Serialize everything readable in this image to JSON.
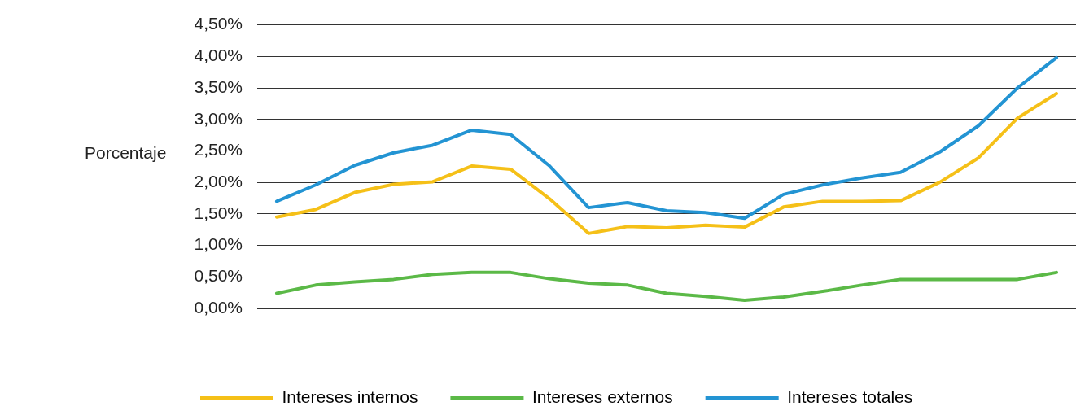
{
  "chart_data": {
    "type": "line",
    "ylabel": "Porcentaje",
    "categories": [
      null,
      null,
      null,
      null,
      null,
      null,
      null,
      null,
      null,
      null,
      null,
      null,
      null,
      null,
      null,
      null,
      null,
      null,
      null,
      null,
      null
    ],
    "series": [
      {
        "name": "Intereses internos",
        "color": "#f5c018",
        "values": [
          1.45,
          1.57,
          1.84,
          1.97,
          2.01,
          2.26,
          2.21,
          1.74,
          1.19,
          1.3,
          1.28,
          1.32,
          1.29,
          1.61,
          1.7,
          1.7,
          1.71,
          2.0,
          2.39,
          3.02,
          3.41
        ]
      },
      {
        "name": "Intereses externos",
        "color": "#5bb947",
        "values": [
          0.24,
          0.37,
          0.42,
          0.46,
          0.54,
          0.57,
          0.57,
          0.47,
          0.4,
          0.37,
          0.24,
          0.19,
          0.13,
          0.18,
          0.27,
          0.37,
          0.46,
          0.46,
          0.46,
          0.46,
          0.57
        ]
      },
      {
        "name": "Intereses totales",
        "color": "#2394d3",
        "values": [
          1.7,
          1.96,
          2.27,
          2.47,
          2.59,
          2.83,
          2.76,
          2.26,
          1.6,
          1.68,
          1.55,
          1.52,
          1.43,
          1.81,
          1.96,
          2.07,
          2.16,
          2.48,
          2.9,
          3.5,
          3.98
        ]
      }
    ],
    "ylim": [
      0,
      4.5
    ],
    "yticks": [
      {
        "value": 0,
        "label": "0,00%"
      },
      {
        "value": 0.5,
        "label": "0,50%"
      },
      {
        "value": 1,
        "label": "1,00%"
      },
      {
        "value": 1.5,
        "label": "1,50%"
      },
      {
        "value": 2,
        "label": "2,00%"
      },
      {
        "value": 2.5,
        "label": "2,50%"
      },
      {
        "value": 3,
        "label": "3,00%"
      },
      {
        "value": 3.5,
        "label": "3,50%"
      },
      {
        "value": 4,
        "label": "4,00%"
      },
      {
        "value": 4.5,
        "label": "4,50%"
      }
    ],
    "grid": "y",
    "legend": "bottom",
    "marker": "none",
    "line_style": "solid",
    "tick_labels": "y"
  }
}
